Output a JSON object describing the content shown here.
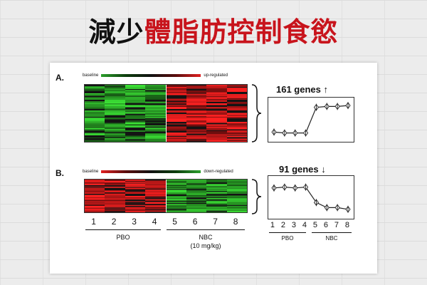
{
  "title": {
    "black": "減少",
    "red": "體脂肪控制食慾"
  },
  "panel_a": {
    "label": "A.",
    "scale_left": "baseline",
    "scale_right": "up-regulated",
    "genes_text": "161 genes ↑",
    "profile": [
      0.22,
      0.2,
      0.2,
      0.2,
      0.78,
      0.8,
      0.8,
      0.82
    ]
  },
  "panel_b": {
    "label": "B.",
    "scale_left": "baseline",
    "scale_right": "down-regulated",
    "genes_text": "91 genes ↓",
    "profile": [
      0.72,
      0.74,
      0.72,
      0.74,
      0.38,
      0.26,
      0.26,
      0.22
    ]
  },
  "samples": [
    "1",
    "2",
    "3",
    "4",
    "5",
    "6",
    "7",
    "8"
  ],
  "groups": {
    "pbo": "PBO",
    "nbc": "NBC",
    "nbc_dose": "(10 mg/kg)"
  },
  "colors": {
    "red": "#e02020",
    "green": "#2ca02c",
    "dark": "#1a1a1a",
    "title_red": "#c8141c"
  }
}
